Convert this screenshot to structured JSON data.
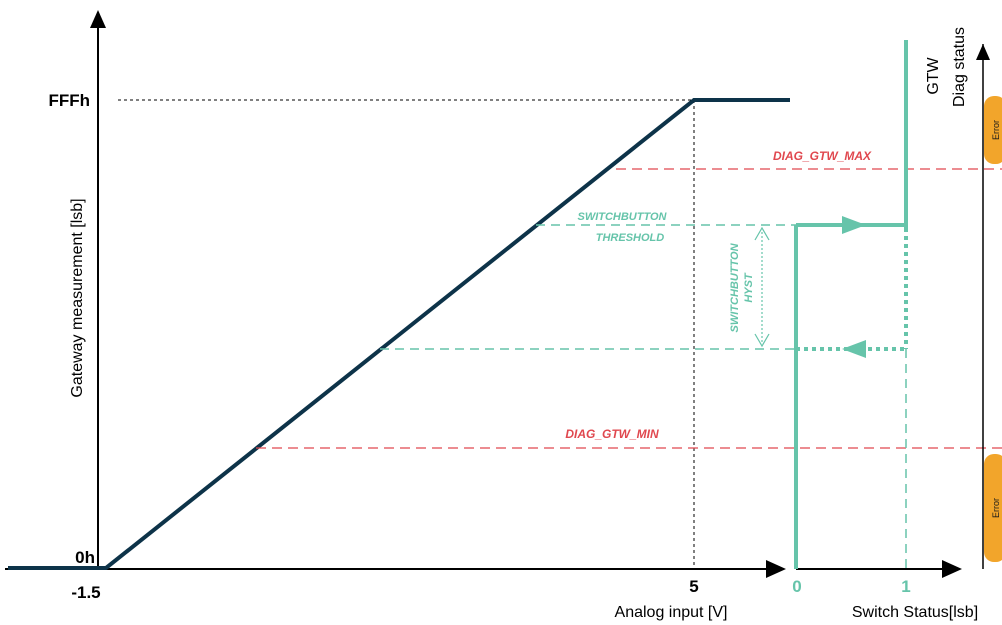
{
  "left_axis": {
    "y_label": "Gateway measurement [lsb]",
    "y_tick_top": "FFFh",
    "y_tick_bottom": "0h",
    "x_tick_left": "-1.5",
    "x_tick_right": "5",
    "x_label": "Analog input  [V]"
  },
  "thresholds": {
    "diag_max": "DIAG_GTW_MAX",
    "diag_min": "DIAG_GTW_MIN",
    "switch_threshold_line1": "SWITCHBUTTON",
    "switch_threshold_line2": "THRESHOLD",
    "hyst_line1": "SWITCHBUTTON",
    "hyst_line2": "HYST"
  },
  "switch_axis": {
    "tick_0": "0",
    "tick_1": "1",
    "x_label": "Switch Status[lsb]",
    "gtw_label": "GTW"
  },
  "diag_axis": {
    "label": "Diag status",
    "error_top": "Error",
    "error_bottom": "Error"
  },
  "colors": {
    "curve": "#0d3349",
    "red_dashed": "#e0484f",
    "teal": "#66c4aa",
    "error_badge": "#f2a52b"
  }
}
